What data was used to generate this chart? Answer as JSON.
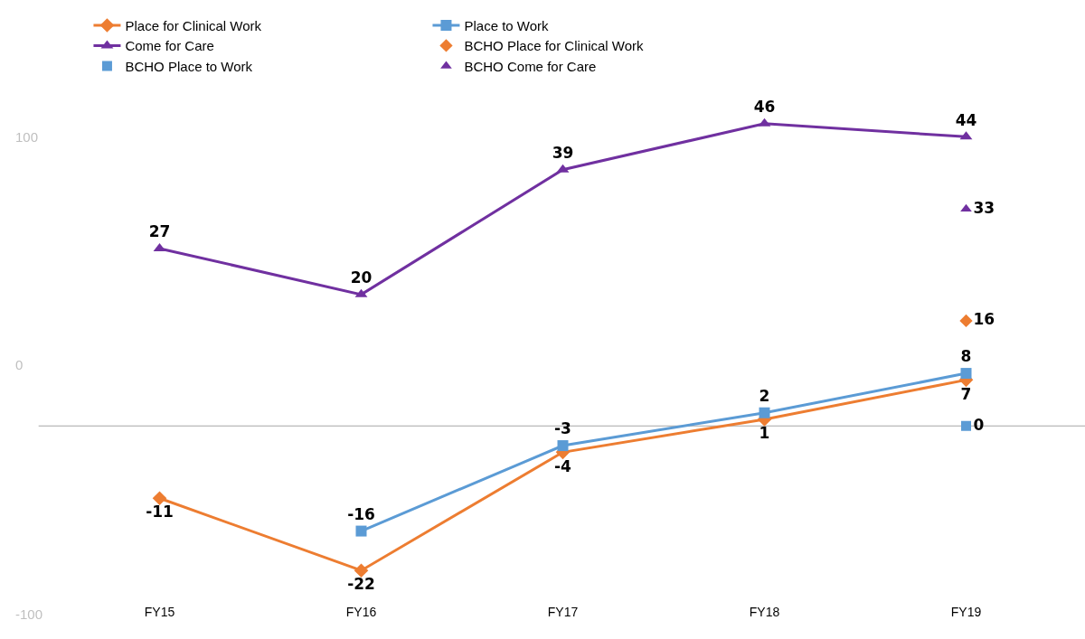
{
  "chart_data": {
    "type": "line",
    "categories": [
      "FY15",
      "FY16",
      "FY17",
      "FY18",
      "FY19"
    ],
    "series": [
      {
        "name": "Place for Clinical Work",
        "color": "#ed7d31",
        "marker": "diamond",
        "values": [
          -11,
          -22,
          -4,
          1,
          7
        ]
      },
      {
        "name": "Place to Work",
        "color": "#5b9bd5",
        "marker": "square",
        "values": [
          null,
          -16,
          -3,
          2,
          8
        ]
      },
      {
        "name": "Come for Care",
        "color": "#7030a0",
        "marker": "triangle",
        "values": [
          27,
          20,
          39,
          46,
          44
        ]
      },
      {
        "name": "BCHO Place for Clinical Work",
        "type": "scatter",
        "color": "#ed7d31",
        "marker": "diamond",
        "values": [
          null,
          null,
          null,
          null,
          16
        ]
      },
      {
        "name": "BCHO Place to Work",
        "type": "scatter",
        "color": "#5b9bd5",
        "marker": "square",
        "values": [
          null,
          null,
          null,
          null,
          0
        ]
      },
      {
        "name": "BCHO Come for Care",
        "type": "scatter",
        "color": "#7030a0",
        "marker": "triangle",
        "values": [
          null,
          null,
          null,
          null,
          33
        ]
      }
    ],
    "data_labels": true,
    "legend": "top",
    "grid": false,
    "ref_lines": [
      {
        "axis": "y",
        "value": 0,
        "color": "#a6a6a6"
      }
    ],
    "annotations": [
      "100",
      "0",
      "-100"
    ]
  }
}
